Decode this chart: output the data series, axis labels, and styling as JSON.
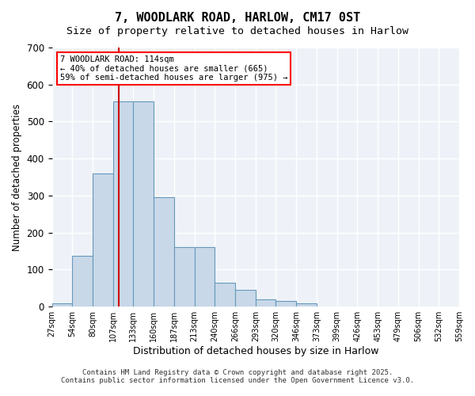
{
  "title_line1": "7, WOODLARK ROAD, HARLOW, CM17 0ST",
  "title_line2": "Size of property relative to detached houses in Harlow",
  "xlabel": "Distribution of detached houses by size in Harlow",
  "ylabel": "Number of detached properties",
  "bar_color": "#c8d8e8",
  "bar_edge_color": "#6699bb",
  "background_color": "#eef2f8",
  "grid_color": "#ffffff",
  "bin_labels": [
    "27sqm",
    "54sqm",
    "80sqm",
    "107sqm",
    "133sqm",
    "160sqm",
    "187sqm",
    "213sqm",
    "240sqm",
    "266sqm",
    "293sqm",
    "320sqm",
    "346sqm",
    "373sqm",
    "399sqm",
    "426sqm",
    "453sqm",
    "479sqm",
    "506sqm",
    "532sqm",
    "559sqm"
  ],
  "bar_values": [
    10,
    137,
    360,
    555,
    555,
    295,
    160,
    160,
    65,
    45,
    20,
    15,
    10,
    0,
    0,
    0,
    0,
    0,
    0,
    0
  ],
  "property_size_sqm": 114,
  "property_label": "7 WOODLARK ROAD: 114sqm",
  "annotation_line2": "← 40% of detached houses are smaller (665)",
  "annotation_line3": "59% of semi-detached houses are larger (975) →",
  "red_line_color": "#cc0000",
  "ylim": [
    0,
    700
  ],
  "yticks": [
    0,
    100,
    200,
    300,
    400,
    500,
    600,
    700
  ],
  "bin_edges": [
    27,
    54,
    80,
    107,
    133,
    160,
    187,
    213,
    240,
    266,
    293,
    320,
    346,
    373,
    399,
    426,
    453,
    479,
    506,
    532,
    559
  ],
  "footnote1": "Contains HM Land Registry data © Crown copyright and database right 2025.",
  "footnote2": "Contains public sector information licensed under the Open Government Licence v3.0."
}
